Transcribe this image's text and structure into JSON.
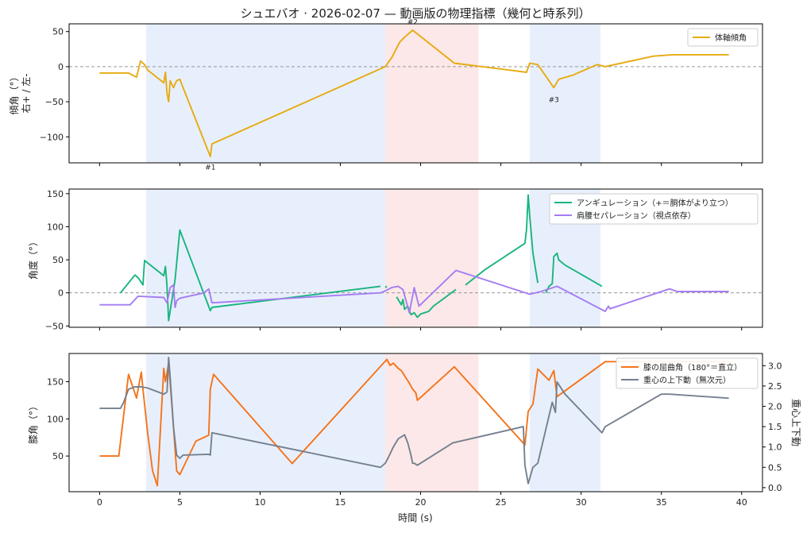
{
  "figure_title": "シュエバオ · 2026-02-07 — 動画版の物理指標（幾何と時系列）",
  "xlabel": "時間 (s)",
  "x_ticks": [
    0,
    5,
    10,
    15,
    20,
    25,
    30,
    35,
    40
  ],
  "xlim": [
    -1.9,
    41.3
  ],
  "shaded_regions": [
    {
      "start": 2.9,
      "end": 17.8,
      "color": "#dbe6fa"
    },
    {
      "start": 17.8,
      "end": 23.6,
      "color": "#fbdcdc"
    },
    {
      "start": 26.8,
      "end": 31.2,
      "color": "#dbe6fa"
    }
  ],
  "chart_data": [
    {
      "type": "line",
      "ylabel": "傾角（°）",
      "ylabel2": "右+ / 左-",
      "ylim": [
        -137,
        61
      ],
      "y_ticks": [
        50,
        0,
        -50,
        -100
      ],
      "zero_line": true,
      "legend_position": "top-right",
      "series": [
        {
          "name": "体軸傾角",
          "color": "#e6ab12",
          "x": [
            0,
            1.8,
            2.3,
            2.55,
            2.8,
            3.0,
            4.0,
            4.1,
            4.2,
            4.3,
            4.4,
            4.6,
            4.8,
            5.0,
            5.2,
            6.9,
            7.0,
            17.8,
            18.2,
            18.7,
            19.0,
            19.5,
            22.1,
            26.6,
            26.8,
            27.3,
            28.3,
            28.6,
            29.5,
            31.0,
            31.5,
            34.5,
            35.7,
            39.2
          ],
          "y": [
            -9,
            -9,
            -15,
            8,
            3,
            -5,
            -23,
            -8,
            -38,
            -50,
            -20,
            -30,
            -20,
            -18,
            -30,
            -128,
            -110,
            0,
            13,
            35,
            42,
            52,
            5,
            -8,
            5,
            3,
            -30,
            -18,
            -12,
            3,
            0,
            15,
            17,
            17
          ]
        }
      ],
      "annotations": [
        {
          "text": "#1",
          "x": 6.9,
          "y": -143
        },
        {
          "text": "#2",
          "x": 19.5,
          "y": 64
        },
        {
          "text": "#3",
          "x": 28.3,
          "y": -47
        }
      ]
    },
    {
      "type": "line",
      "ylabel": "角度（°）",
      "ylim": [
        -52,
        157
      ],
      "y_ticks": [
        150,
        100,
        50,
        0,
        -50
      ],
      "zero_line": true,
      "legend_position": "top-right",
      "series": [
        {
          "name": "アンギュレーション（+＝胴体がより立つ）",
          "color": "#17b57e",
          "segments": [
            {
              "x": [
                1.3,
                2.2,
                2.4,
                2.7,
                2.8,
                4.0,
                4.1,
                4.2,
                4.3,
                4.5,
                4.7,
                5.0,
                6.9,
                7.0,
                17.5
              ],
              "y": [
                0,
                27,
                23,
                12,
                49,
                26,
                40,
                10,
                -42,
                -12,
                20,
                95,
                -27,
                -22,
                10
              ]
            },
            {
              "x": [
                17.8,
                17.9
              ],
              "y": [
                8,
                10
              ]
            },
            {
              "x": [
                18.5,
                18.8,
                18.9,
                19.0,
                19.2,
                19.4,
                19.6,
                19.8,
                20.0,
                20.5,
                20.8,
                22.2
              ],
              "y": [
                -6,
                -18,
                -10,
                -25,
                -20,
                -33,
                -30,
                -37,
                -32,
                -28,
                -20,
                5
              ]
            },
            {
              "x": [
                22.8,
                24.0,
                26.5,
                26.6,
                26.7,
                26.8,
                27.0,
                27.3
              ],
              "y": [
                12,
                35,
                75,
                95,
                148,
                115,
                60,
                15
              ]
            },
            {
              "x": [
                27.8,
                28.0,
                28.2,
                28.3,
                28.5,
                28.6,
                29.0,
                31.3
              ],
              "y": [
                0,
                10,
                14,
                55,
                60,
                50,
                42,
                10
              ]
            }
          ]
        },
        {
          "name": "肩腰セパレーション（視点依存）",
          "color": "#a47df2",
          "x": [
            0,
            1.9,
            2.4,
            4.0,
            4.2,
            4.4,
            4.6,
            4.7,
            4.8,
            5.0,
            6.5,
            6.8,
            7.0,
            17.5,
            17.8,
            18.2,
            18.6,
            18.9,
            19.3,
            19.6,
            19.9,
            22.2,
            26.8,
            27.5,
            28.5,
            31.5,
            31.7,
            31.8,
            35.5,
            36.0,
            39.2
          ],
          "y": [
            -18,
            -18,
            -5,
            -7,
            -15,
            8,
            12,
            -22,
            -12,
            -8,
            0,
            6,
            -15,
            0,
            3,
            8,
            10,
            5,
            -30,
            8,
            -20,
            34,
            -2,
            2,
            10,
            -28,
            -20,
            -24,
            6,
            2,
            2
          ]
        }
      ]
    },
    {
      "type": "line",
      "ylabel": "膝角（°）",
      "ylim": [
        2,
        188
      ],
      "y_ticks": [
        150,
        100,
        50
      ],
      "ylabel2": "重心上下動",
      "ylim2": [
        -0.1,
        3.3
      ],
      "y2_ticks": [
        0.0,
        0.5,
        1.0,
        1.5,
        2.0,
        2.5,
        3.0
      ],
      "legend_position": "top-right",
      "series": [
        {
          "name": "膝の屈曲角（180°＝直立）",
          "color": "#f5731a",
          "axis": "left",
          "x": [
            0,
            1.2,
            1.8,
            2.3,
            2.6,
            2.7,
            3.0,
            3.3,
            3.6,
            4.0,
            4.1,
            4.3,
            4.5,
            4.8,
            5.0,
            6.0,
            6.8,
            6.9,
            7.1,
            12.0,
            17.6,
            17.9,
            18.1,
            18.3,
            18.6,
            18.8,
            19.0,
            19.3,
            19.5,
            19.7,
            19.8,
            22.1,
            26.5,
            26.7,
            27.0,
            27.3,
            28.0,
            28.3,
            28.5,
            31.5,
            32.0,
            39.2
          ],
          "y": [
            50,
            50,
            160,
            128,
            163,
            140,
            80,
            30,
            10,
            168,
            150,
            175,
            120,
            30,
            25,
            70,
            78,
            140,
            160,
            40,
            173,
            180,
            172,
            175,
            168,
            165,
            158,
            148,
            140,
            135,
            125,
            170,
            65,
            110,
            120,
            167,
            152,
            165,
            130,
            177,
            177,
            177
          ]
        },
        {
          "name": "重心の上下動（無次元）",
          "color": "#75808f",
          "axis": "right",
          "x": [
            0,
            1.3,
            1.5,
            1.8,
            2.2,
            2.6,
            3.0,
            4.0,
            4.2,
            4.3,
            4.4,
            4.6,
            4.8,
            5.0,
            5.2,
            6.8,
            6.9,
            7.0,
            17.5,
            17.8,
            18.0,
            18.3,
            18.6,
            18.8,
            19.0,
            19.2,
            19.4,
            19.5,
            19.6,
            19.8,
            22.0,
            26.4,
            26.5,
            26.7,
            27.0,
            27.3,
            28.2,
            28.4,
            28.5,
            29.0,
            31.3,
            31.5,
            35.0,
            35.5,
            39.2
          ],
          "y": [
            1.95,
            1.95,
            2.1,
            2.42,
            2.48,
            2.48,
            2.45,
            2.3,
            2.35,
            3.2,
            2.7,
            1.5,
            0.8,
            0.72,
            0.8,
            0.82,
            0.8,
            1.35,
            0.5,
            0.6,
            0.75,
            1.0,
            1.2,
            1.25,
            1.3,
            1.1,
            0.8,
            0.6,
            0.6,
            0.55,
            1.1,
            1.5,
            0.55,
            0.1,
            0.5,
            0.6,
            2.1,
            1.85,
            2.6,
            2.3,
            1.35,
            1.5,
            2.3,
            2.3,
            2.2
          ]
        }
      ]
    }
  ]
}
